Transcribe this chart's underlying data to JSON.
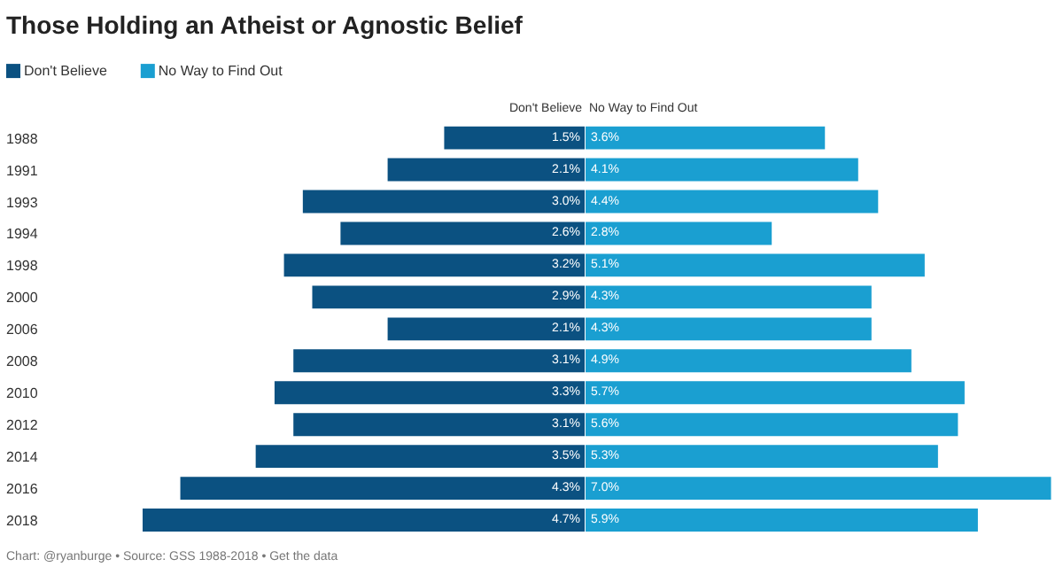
{
  "chart_data": [
    {
      "type": "bar",
      "orientation": "horizontal",
      "title": "Those Holding an Atheist or Agnostic Belief",
      "categories": [
        "1988",
        "1991",
        "1993",
        "1994",
        "1998",
        "2000",
        "2006",
        "2008",
        "2010",
        "2012",
        "2014",
        "2016",
        "2018"
      ],
      "tick_labels": "y",
      "series": [
        {
          "name": "Don't Believe",
          "color": "#0b5181",
          "values": [
            1.5,
            2.1,
            3.0,
            2.6,
            3.2,
            2.9,
            2.1,
            3.1,
            3.3,
            3.1,
            3.5,
            4.3,
            4.7
          ],
          "value_labels": [
            "1.5%",
            "2.1%",
            "3.0%",
            "2.6%",
            "3.2%",
            "2.9%",
            "2.1%",
            "3.1%",
            "3.3%",
            "3.1%",
            "3.5%",
            "4.3%",
            "4.7%"
          ]
        }
      ],
      "legend": "top left",
      "annotations": [
        "Don't Believe",
        "Chart: @ryanburge • Source: GSS 1988-2018 • Get the data"
      ]
    },
    {
      "type": "bar",
      "orientation": "horizontal",
      "categories": [
        "1988",
        "1991",
        "1993",
        "1994",
        "1998",
        "2000",
        "2006",
        "2008",
        "2010",
        "2012",
        "2014",
        "2016",
        "2018"
      ],
      "tick_labels": false,
      "series": [
        {
          "name": "No Way to Find Out",
          "color": "#1a9fd1",
          "values": [
            3.6,
            4.1,
            4.4,
            2.8,
            5.1,
            4.3,
            4.3,
            4.9,
            5.7,
            5.6,
            5.3,
            7.0,
            5.9
          ],
          "value_labels": [
            "3.6%",
            "4.1%",
            "4.4%",
            "2.8%",
            "5.1%",
            "4.3%",
            "4.3%",
            "4.9%",
            "5.7%",
            "5.6%",
            "5.3%",
            "7.0%",
            "5.9%"
          ]
        }
      ],
      "annotations": [
        "No Way to Find Out"
      ]
    }
  ]
}
